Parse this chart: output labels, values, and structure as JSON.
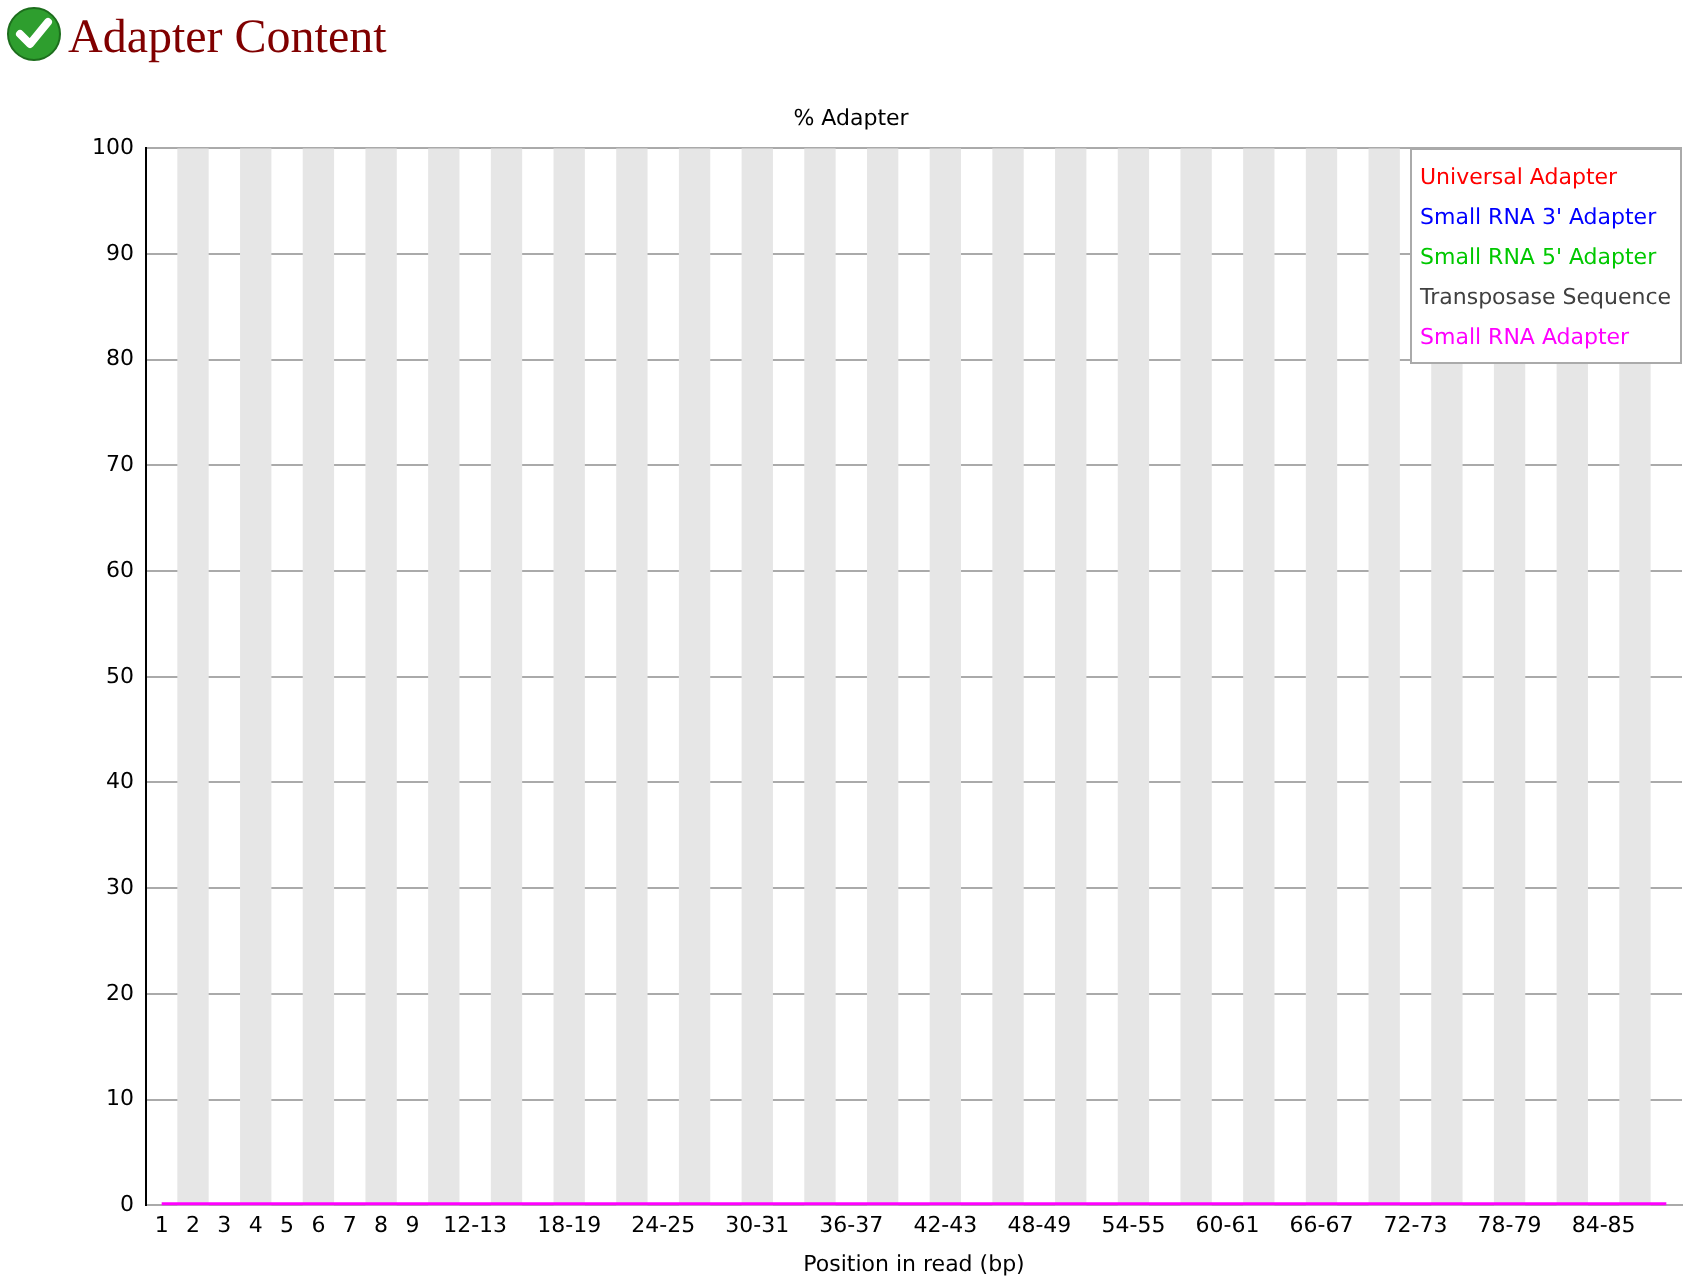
{
  "chart_data": {
    "type": "line",
    "title": "Adapter Content",
    "subtitle": "% Adapter",
    "xlabel": "Position in read (bp)",
    "categories": [
      "1",
      "2",
      "3",
      "4",
      "5",
      "6",
      "7",
      "8",
      "9",
      null,
      "12-13",
      null,
      null,
      "18-19",
      null,
      null,
      "24-25",
      null,
      null,
      "30-31",
      null,
      null,
      "36-37",
      null,
      null,
      "42-43",
      null,
      null,
      "48-49",
      null,
      null,
      "54-55",
      null,
      null,
      "60-61",
      null,
      null,
      "66-67",
      null,
      null,
      "72-73",
      null,
      null,
      "78-79",
      null,
      null,
      "84-85",
      null,
      null
    ],
    "series": [
      {
        "name": "Universal Adapter",
        "color": "#ff0000",
        "values": [
          null,
          null,
          null,
          null,
          null,
          null,
          null,
          null,
          null,
          null,
          null,
          null,
          null,
          null,
          null,
          null,
          null,
          null,
          null,
          null,
          null,
          null,
          null,
          null,
          null,
          null,
          null,
          null,
          null,
          null,
          null,
          null,
          null,
          null,
          null,
          null,
          null,
          null,
          null,
          null,
          null,
          null,
          null,
          null,
          null,
          null,
          null,
          null,
          null
        ]
      },
      {
        "name": "Small RNA 3' Adapter",
        "color": "#0000ff",
        "values": [
          null,
          null,
          null,
          null,
          null,
          null,
          null,
          null,
          null,
          null,
          null,
          null,
          null,
          null,
          null,
          null,
          null,
          null,
          null,
          null,
          null,
          null,
          null,
          null,
          null,
          null,
          null,
          null,
          null,
          null,
          null,
          null,
          null,
          null,
          null,
          null,
          null,
          null,
          null,
          null,
          null,
          null,
          null,
          null,
          null,
          null,
          null,
          null,
          null
        ]
      },
      {
        "name": "Small RNA 5' Adapter",
        "color": "#00c800",
        "values": [
          null,
          null,
          null,
          null,
          null,
          null,
          null,
          null,
          null,
          null,
          null,
          null,
          null,
          null,
          null,
          null,
          null,
          null,
          null,
          null,
          null,
          null,
          null,
          null,
          null,
          null,
          null,
          null,
          null,
          null,
          null,
          null,
          null,
          null,
          null,
          null,
          null,
          null,
          null,
          null,
          null,
          null,
          null,
          null,
          null,
          null,
          null,
          null,
          null
        ]
      },
      {
        "name": "Transposase Sequence",
        "color": "#404040",
        "values": [
          null,
          null,
          null,
          null,
          null,
          null,
          null,
          null,
          null,
          null,
          null,
          null,
          null,
          null,
          null,
          null,
          null,
          null,
          null,
          null,
          null,
          null,
          null,
          null,
          null,
          null,
          null,
          null,
          null,
          null,
          null,
          null,
          null,
          null,
          null,
          null,
          null,
          null,
          null,
          null,
          null,
          null,
          null,
          null,
          null,
          null,
          null,
          null,
          null
        ]
      },
      {
        "name": "Small RNA Adapter",
        "color": "#ff00ff",
        "values": [
          0,
          0,
          0,
          0,
          0,
          0,
          0,
          0,
          0,
          0,
          0,
          0,
          0,
          0,
          0,
          0,
          0,
          0,
          0,
          0,
          0,
          0,
          0,
          0,
          0,
          0,
          0,
          0,
          0,
          0,
          0,
          0,
          0,
          0,
          0,
          0,
          0,
          0,
          0,
          0,
          0,
          0,
          0,
          0,
          0,
          0,
          0,
          0,
          0
        ]
      }
    ],
    "ylim": [
      0,
      100
    ],
    "yticks": [
      0,
      10,
      20,
      30,
      40,
      50,
      60,
      70,
      80,
      90,
      100
    ],
    "grid": "y",
    "legend": "top right",
    "marker": "none",
    "line_style": "solid"
  }
}
